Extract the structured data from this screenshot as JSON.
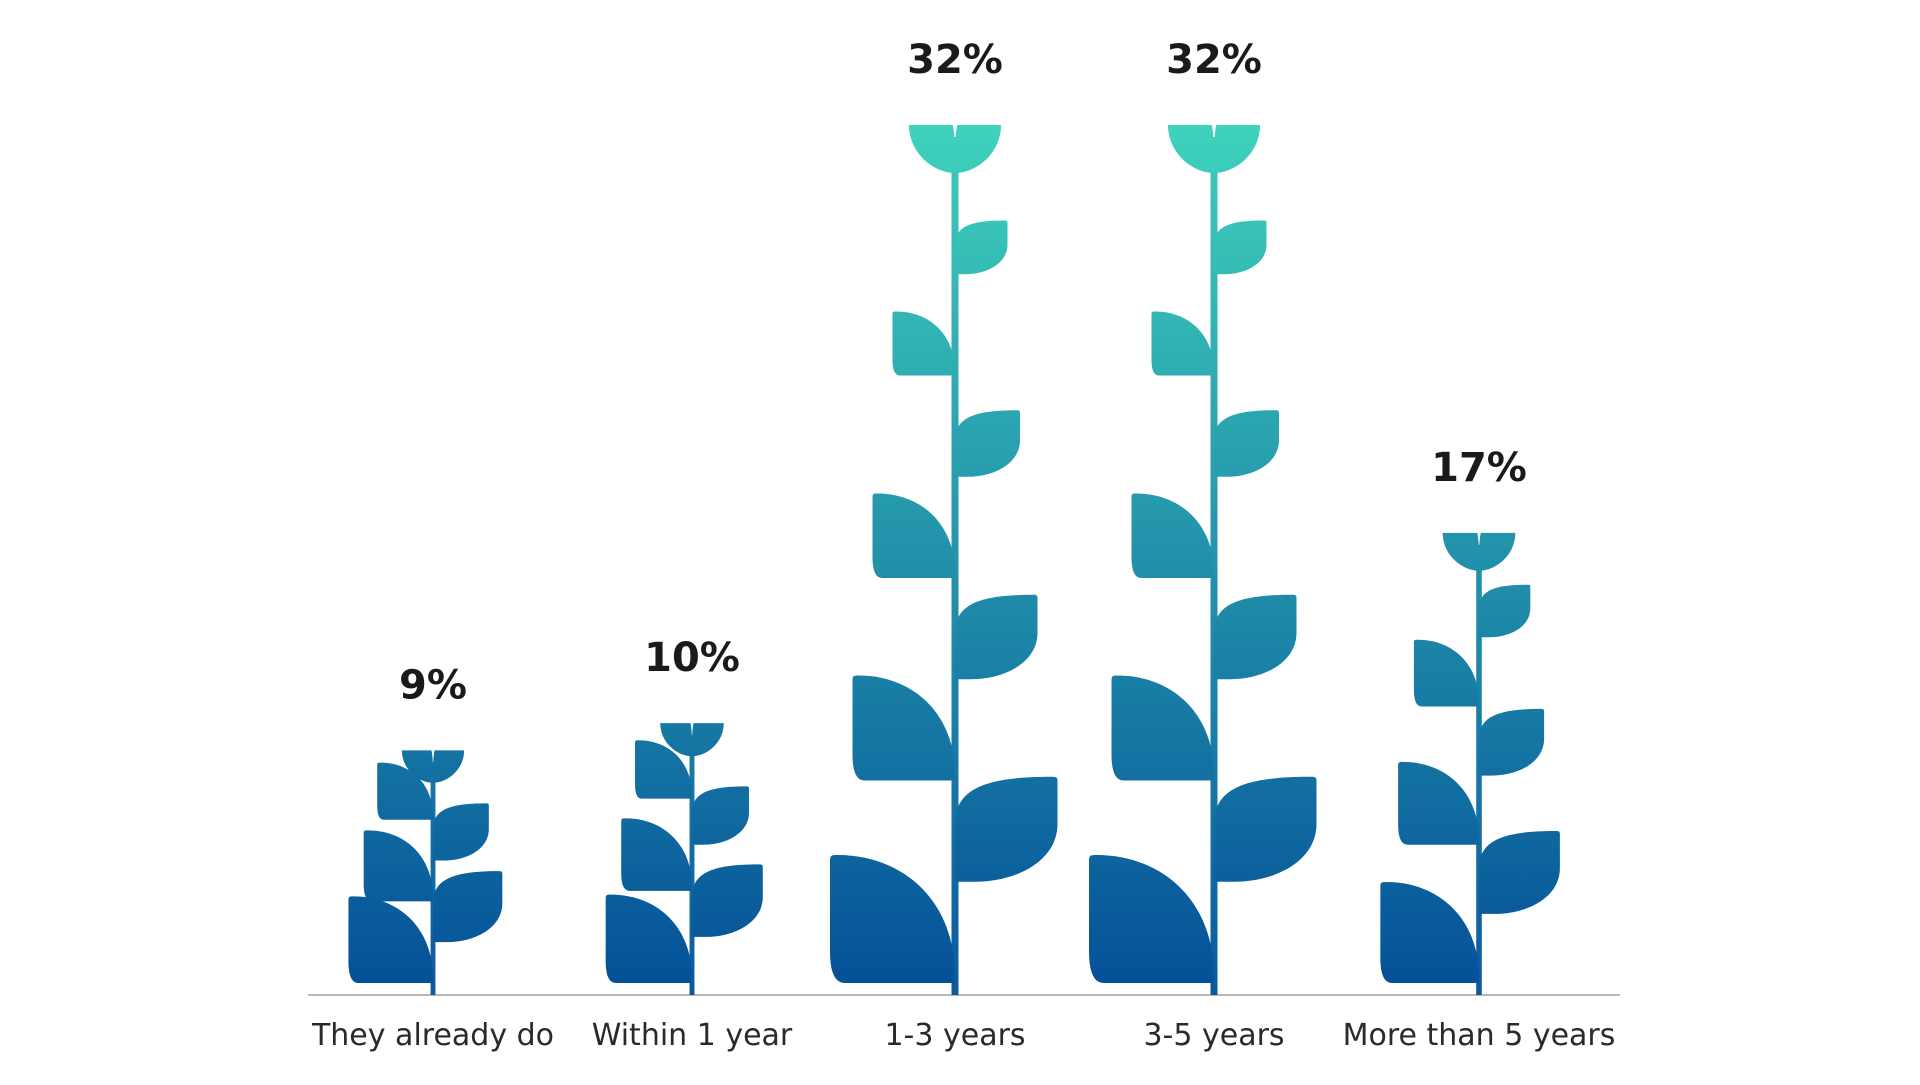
{
  "chart_data": {
    "type": "bar",
    "title": "",
    "xlabel": "",
    "ylabel": "",
    "categories": [
      "They already do",
      "Within 1 year",
      "1-3 years",
      "3-5 years",
      "More than 5 years"
    ],
    "values": [
      9,
      10,
      32,
      32,
      17
    ],
    "value_labels": [
      "9%",
      "10%",
      "32%",
      "32%",
      "17%"
    ],
    "ylim": [
      0,
      32
    ],
    "grid": false,
    "legend": "none",
    "colors": {
      "leaf_top": "#3fd3bc",
      "leaf_bottom": "#044f98",
      "stem_top": "#40cdb8",
      "stem_bottom": "#0a5aa0",
      "baseline": "#b8b8b8",
      "text": "#1a1a1a"
    }
  }
}
